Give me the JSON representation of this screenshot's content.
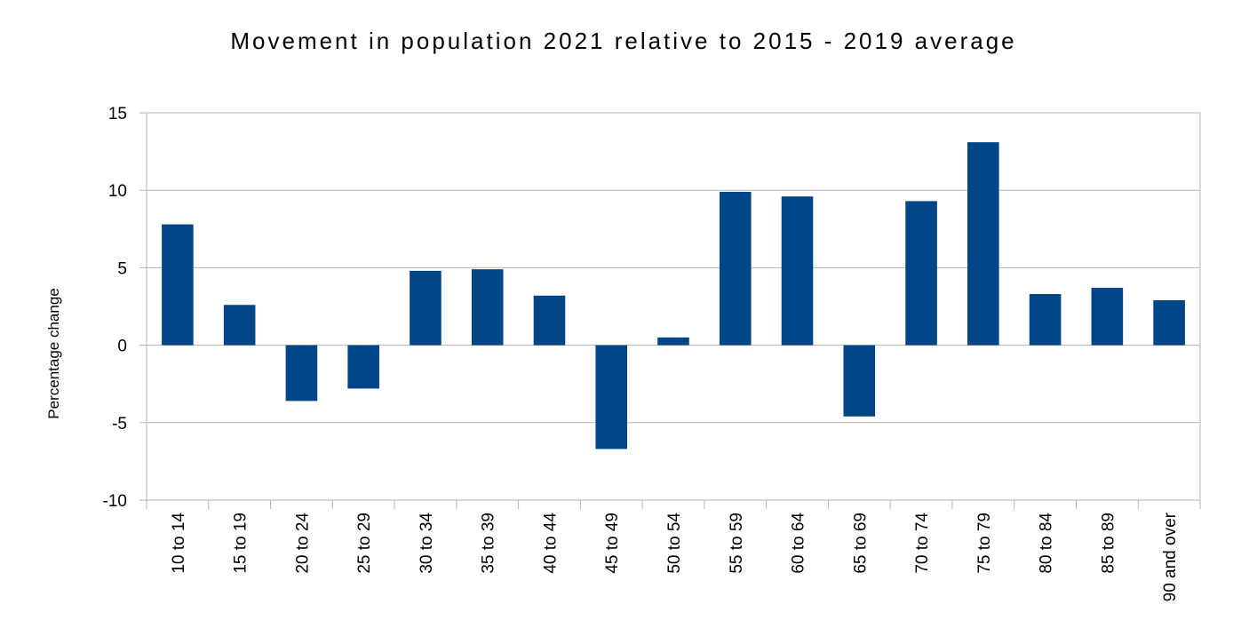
{
  "chart_data": {
    "type": "bar",
    "title": "Movement in population 2021 relative to 2015 - 2019 average",
    "xlabel": "",
    "ylabel": "Percentage change",
    "ylim": [
      -10,
      15
    ],
    "yticks": [
      -10,
      -5,
      0,
      5,
      10,
      15
    ],
    "grid": true,
    "legend": "none",
    "bar_color": "#004586",
    "categories": [
      "10 to 14",
      "15 to 19",
      "20 to 24",
      "25 to 29",
      "30 to 34",
      "35 to 39",
      "40 to 44",
      "45 to 49",
      "50 to 54",
      "55 to 59",
      "60 to 64",
      "65 to 69",
      "70 to 74",
      "75 to 79",
      "80 to 84",
      "85 to 89",
      "90 and over"
    ],
    "values": [
      7.8,
      2.6,
      -3.6,
      -2.8,
      4.8,
      4.9,
      3.2,
      -6.7,
      0.5,
      9.9,
      9.6,
      -4.6,
      9.3,
      13.1,
      3.3,
      3.7,
      2.9
    ]
  }
}
